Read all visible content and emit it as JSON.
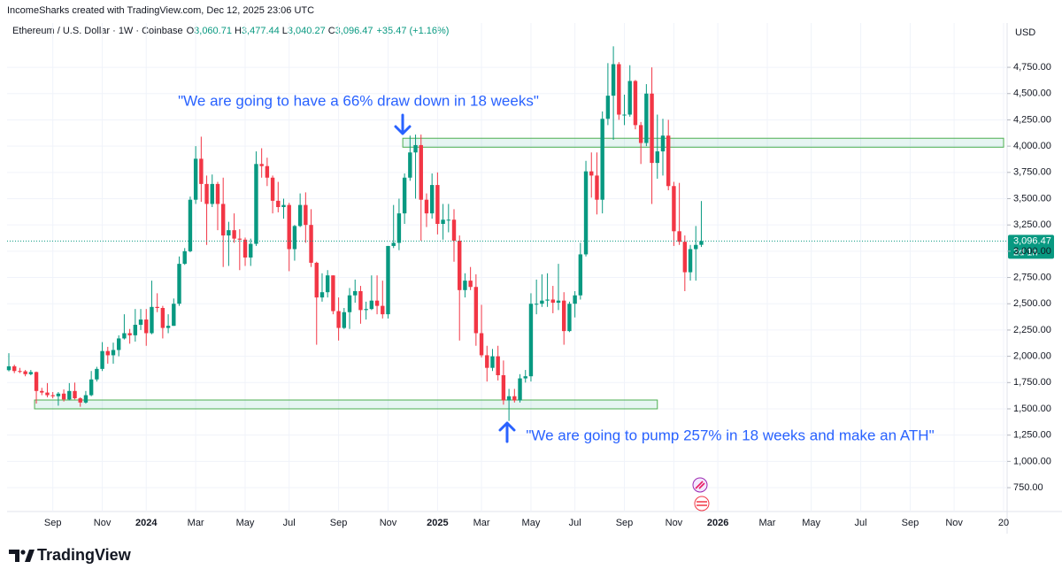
{
  "header": {
    "caption": "IncomeSharks created with TradingView.com, Dec 12, 2025 23:06 UTC",
    "symbol": "Ethereum / U.S. Dollar · 1W · Coinbase",
    "quote": [
      {
        "key": "O",
        "text": "3,060.71"
      },
      {
        "key": "H",
        "text": "3,477.44"
      },
      {
        "key": "L",
        "text": "3,040.27"
      },
      {
        "key": "C",
        "text": "3,096.47"
      }
    ],
    "change": "+35.47 (+1.16%)"
  },
  "chart_data": {
    "type": "candlestick",
    "currency": "USD",
    "up_color": "#089981",
    "down_color": "#f23645",
    "grid": true,
    "categories": [
      null,
      null,
      null,
      null,
      null,
      null,
      null,
      null,
      "Sep",
      null,
      null,
      null,
      null,
      null,
      null,
      null,
      null,
      "Nov",
      null,
      null,
      null,
      null,
      null,
      null,
      null,
      "2024",
      null,
      null,
      null,
      null,
      null,
      null,
      null,
      null,
      "Mar",
      null,
      null,
      null,
      null,
      null,
      null,
      null,
      null,
      "May",
      null,
      null,
      null,
      null,
      null,
      null,
      null,
      "Jul",
      null,
      null,
      null,
      null,
      null,
      null,
      null,
      null,
      "Sep",
      null,
      null,
      null,
      null,
      null,
      null,
      null,
      null,
      "Nov",
      null,
      null,
      null,
      null,
      null,
      null,
      null,
      null,
      "2025",
      null,
      null,
      null,
      null,
      null,
      null,
      null,
      "Mar",
      null,
      null,
      null,
      null,
      null,
      null,
      null,
      null,
      "May",
      null,
      null,
      null,
      null,
      null,
      null,
      null,
      "Jul",
      null,
      null,
      null,
      null,
      null,
      null,
      null,
      null,
      "Sep",
      null,
      null,
      null,
      null,
      null,
      null,
      null,
      null,
      "Nov",
      null,
      null,
      null,
      null,
      null,
      null,
      null,
      "2026",
      null,
      null,
      null,
      null,
      null,
      null,
      null,
      null,
      "Mar",
      null,
      null,
      null,
      null,
      null,
      null,
      null,
      "May",
      null,
      null,
      null,
      null,
      null,
      null,
      null,
      null,
      "Jul",
      null,
      null,
      null,
      null,
      null,
      null,
      null,
      null,
      "Sep",
      null,
      null,
      null,
      null,
      null,
      null,
      null,
      "Nov",
      null,
      null,
      null,
      null,
      null,
      null,
      null,
      null,
      "20"
    ],
    "open": [
      1868,
      1905,
      1860,
      1857,
      1830,
      1850,
      1670,
      1655,
      1630,
      1620,
      1645,
      1590,
      1670,
      1600,
      1560,
      1630,
      1780,
      1880,
      2050,
      2010,
      2060,
      2170,
      2220,
      2200,
      2300,
      2350,
      2220,
      2470,
      2460,
      2270,
      2290,
      2500,
      2880,
      3000,
      3490,
      3880,
      3640,
      3450,
      3640,
      3450,
      3150,
      3200,
      3120,
      3110,
      2940,
      3070,
      3830,
      3810,
      3700,
      3480,
      3420,
      3440,
      3020,
      3240,
      3440,
      3250,
      2890,
      2560,
      2610,
      2770,
      2430,
      2270,
      2420,
      2580,
      2620,
      2440,
      2450,
      2530,
      2480,
      2400,
      3050,
      3080,
      3360,
      3700,
      3940,
      4010,
      3490,
      3360,
      3630,
      3260,
      3300,
      3300,
      3100,
      2630,
      2720,
      2660,
      2220,
      2010,
      1890,
      2000,
      1820,
      1580,
      1620,
      1580,
      1790,
      1810,
      2500,
      2500,
      2530,
      2540,
      2510,
      2530,
      2240,
      2500,
      2580,
      2970,
      3760,
      3720,
      3490,
      4260,
      4480,
      4780,
      4300,
      4300,
      4620,
      4200,
      4030,
      4500,
      3840,
      3950,
      4100,
      3620,
      3190,
      3090,
      2800,
      3020,
      3060.71,
      null,
      null,
      null,
      null,
      null,
      null,
      null,
      null,
      null,
      null,
      null,
      null,
      null,
      null,
      null,
      null,
      null,
      null,
      null,
      null,
      null,
      null,
      null,
      null,
      null,
      null,
      null,
      null,
      null,
      null,
      null,
      null,
      null,
      null,
      null,
      null,
      null,
      null,
      null,
      null,
      null,
      null,
      null,
      null,
      null,
      null,
      null,
      null,
      null,
      null,
      null,
      null,
      null,
      null,
      null
    ],
    "high": [
      2029,
      1920,
      1890,
      1870,
      1870,
      1855,
      1700,
      1745,
      1660,
      1660,
      1685,
      1745,
      1750,
      1610,
      1670,
      1860,
      1900,
      2135,
      2090,
      2130,
      2200,
      2400,
      2260,
      2450,
      2450,
      2450,
      2720,
      2600,
      2480,
      2400,
      2550,
      2950,
      3030,
      3520,
      4000,
      4090,
      3720,
      3730,
      3660,
      3700,
      3280,
      3360,
      3210,
      3130,
      3120,
      3950,
      3980,
      3890,
      3720,
      3660,
      3500,
      3460,
      3250,
      3550,
      3560,
      3400,
      2900,
      2790,
      2820,
      2770,
      2560,
      2460,
      2650,
      2730,
      2670,
      2520,
      2770,
      2770,
      2720,
      3050,
      3440,
      3500,
      3740,
      4100,
      4110,
      4110,
      3550,
      3740,
      3750,
      3450,
      3450,
      3400,
      3150,
      2790,
      2850,
      2780,
      2490,
      2100,
      2070,
      2100,
      1960,
      1690,
      1690,
      1830,
      1870,
      2600,
      2730,
      2780,
      2790,
      2670,
      2880,
      2610,
      2520,
      2620,
      3080,
      3860,
      3940,
      3940,
      4330,
      4790,
      4950,
      4800,
      4490,
      4770,
      4630,
      4230,
      4590,
      4750,
      4300,
      4260,
      4250,
      3660,
      3650,
      3150,
      3060,
      3240,
      3477.44,
      null,
      null,
      null,
      null,
      null,
      null,
      null,
      null,
      null,
      null,
      null,
      null,
      null,
      null,
      null,
      null,
      null,
      null,
      null,
      null,
      null,
      null,
      null,
      null,
      null,
      null,
      null,
      null,
      null,
      null,
      null,
      null,
      null,
      null,
      null,
      null,
      null,
      null,
      null,
      null,
      null,
      null,
      null,
      null,
      null,
      null,
      null,
      null,
      null,
      null,
      null,
      null,
      null,
      null,
      null
    ],
    "low": [
      1857,
      1840,
      1840,
      1810,
      1820,
      1550,
      1630,
      1610,
      1600,
      1530,
      1570,
      1580,
      1590,
      1520,
      1550,
      1620,
      1760,
      1860,
      1930,
      1930,
      2000,
      2160,
      2120,
      2140,
      2250,
      2100,
      2210,
      2420,
      2170,
      2220,
      2290,
      2480,
      2870,
      2990,
      3450,
      3470,
      3060,
      3420,
      3200,
      2850,
      2860,
      3080,
      2820,
      2860,
      2860,
      3050,
      3700,
      3620,
      3360,
      3370,
      3310,
      2810,
      2910,
      3230,
      3080,
      2850,
      2110,
      2520,
      2560,
      2400,
      2150,
      2260,
      2260,
      2510,
      2310,
      2350,
      2440,
      2400,
      2360,
      2360,
      3030,
      3010,
      3260,
      3670,
      3500,
      3100,
      3230,
      3310,
      3160,
      3110,
      3180,
      2900,
      2150,
      2560,
      2630,
      2100,
      1990,
      1760,
      1860,
      1770,
      1540,
      1385,
      1560,
      1560,
      1750,
      1760,
      2400,
      2470,
      2470,
      2410,
      2440,
      2110,
      2230,
      2370,
      2540,
      2950,
      3510,
      3350,
      3360,
      4200,
      4060,
      4250,
      4200,
      4280,
      4160,
      3830,
      4000,
      3450,
      3690,
      3720,
      3580,
      3050,
      3060,
      2620,
      2720,
      2720,
      3040.27,
      null,
      null,
      null,
      null,
      null,
      null,
      null,
      null,
      null,
      null,
      null,
      null,
      null,
      null,
      null,
      null,
      null,
      null,
      null,
      null,
      null,
      null,
      null,
      null,
      null,
      null,
      null,
      null,
      null,
      null,
      null,
      null,
      null,
      null,
      null,
      null,
      null,
      null,
      null,
      null,
      null,
      null,
      null,
      null,
      null,
      null,
      null,
      null,
      null,
      null,
      null,
      null,
      null,
      null,
      null
    ],
    "close": [
      1905,
      1860,
      1857,
      1830,
      1850,
      1670,
      1655,
      1630,
      1620,
      1645,
      1590,
      1670,
      1600,
      1560,
      1630,
      1780,
      1880,
      2050,
      2010,
      2060,
      2170,
      2220,
      2200,
      2300,
      2350,
      2220,
      2470,
      2460,
      2270,
      2290,
      2500,
      2880,
      3000,
      3490,
      3880,
      3640,
      3450,
      3640,
      3450,
      3150,
      3200,
      3120,
      3110,
      2940,
      3070,
      3830,
      3810,
      3700,
      3480,
      3420,
      3440,
      3020,
      3240,
      3440,
      3250,
      2890,
      2560,
      2610,
      2770,
      2430,
      2270,
      2420,
      2580,
      2620,
      2440,
      2450,
      2530,
      2480,
      2400,
      3050,
      3080,
      3360,
      3700,
      3940,
      4010,
      3490,
      3360,
      3630,
      3260,
      3300,
      3300,
      3100,
      2630,
      2720,
      2660,
      2220,
      2010,
      1890,
      2000,
      1820,
      1580,
      1620,
      1580,
      1790,
      1810,
      2500,
      2500,
      2530,
      2540,
      2510,
      2530,
      2240,
      2500,
      2580,
      2970,
      3760,
      3720,
      3490,
      4260,
      4480,
      4780,
      4300,
      4300,
      4620,
      4200,
      4030,
      4500,
      3840,
      3950,
      4100,
      3620,
      3190,
      3090,
      2800,
      3020,
      3060,
      3096.47,
      null,
      null,
      null,
      null,
      null,
      null,
      null,
      null,
      null,
      null,
      null,
      null,
      null,
      null,
      null,
      null,
      null,
      null,
      null,
      null,
      null,
      null,
      null,
      null,
      null,
      null,
      null,
      null,
      null,
      null,
      null,
      null,
      null,
      null,
      null,
      null,
      null,
      null,
      null,
      null,
      null,
      null,
      null,
      null,
      null,
      null,
      null,
      null,
      null,
      null,
      null,
      null,
      null,
      null,
      null
    ],
    "ylim": [
      523,
      5138
    ],
    "yticks": [
      {
        "value": 750,
        "label": "750.00"
      },
      {
        "value": 1000,
        "label": "1,000.00"
      },
      {
        "value": 1250,
        "label": "1,250.00"
      },
      {
        "value": 1500,
        "label": "1,500.00"
      },
      {
        "value": 1750,
        "label": "1,750.00"
      },
      {
        "value": 2000,
        "label": "2,000.00"
      },
      {
        "value": 2250,
        "label": "2,250.00"
      },
      {
        "value": 2500,
        "label": "2,500.00"
      },
      {
        "value": 2750,
        "label": "2,750.00"
      },
      {
        "value": 3000,
        "label": "3,000.00"
      },
      {
        "value": 3250,
        "label": "3,250.00"
      },
      {
        "value": 3500,
        "label": "3,500.00"
      },
      {
        "value": 3750,
        "label": "3,750.00"
      },
      {
        "value": 4000,
        "label": "4,000.00"
      },
      {
        "value": 4250,
        "label": "4,250.00"
      },
      {
        "value": 4500,
        "label": "4,500.00"
      },
      {
        "value": 4750,
        "label": "4,750.00"
      }
    ],
    "last_price": {
      "value": 3096.47,
      "label": "3,096.47",
      "countdown": "2d 1h"
    },
    "zones": [
      {
        "low": 3990,
        "high": 4075,
        "start": 72,
        "end": 181
      },
      {
        "low": 1500,
        "high": 1584,
        "start": 5,
        "end": 118
      }
    ],
    "annotations": [
      {
        "text": "\"We are going to have a 66% draw down in 18 weeks\""
      },
      {
        "text": "\"We are going to pump 257% in 18 weeks and make an ATH\""
      }
    ]
  },
  "footer": {
    "logo": "TradingView"
  }
}
